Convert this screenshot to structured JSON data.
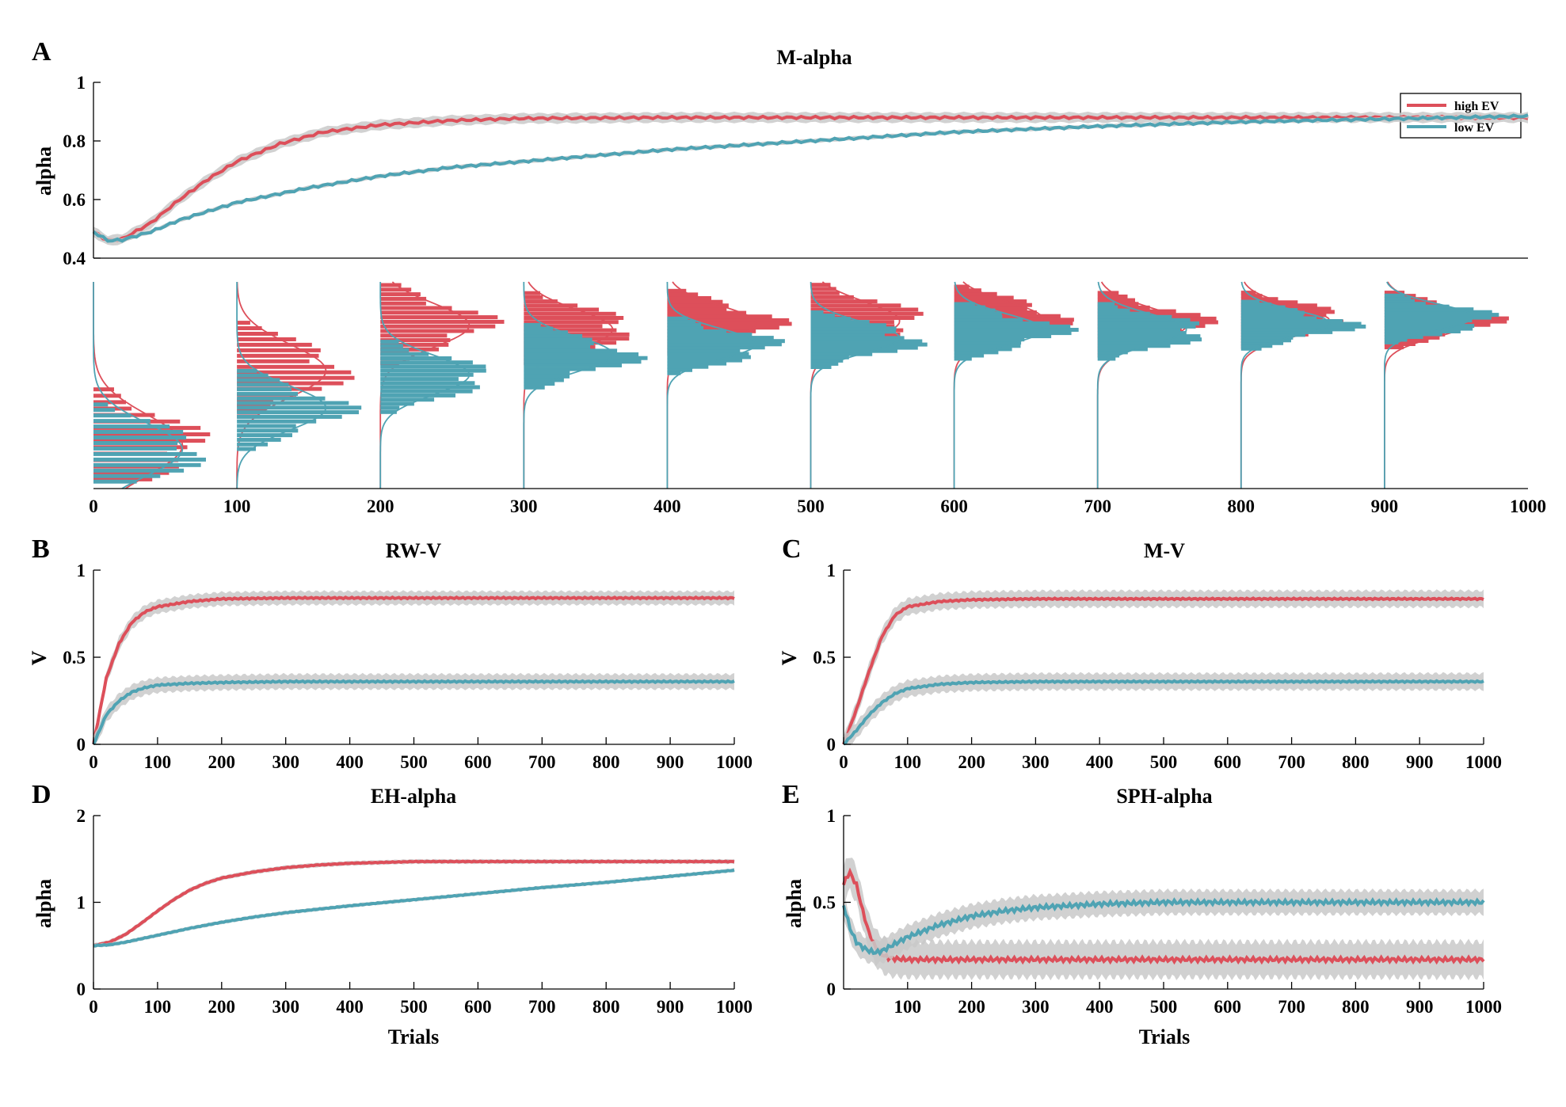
{
  "colors": {
    "high": "#dd4f5a",
    "low": "#4fa3b3",
    "band": "#c9c9c9",
    "axis": "#000000"
  },
  "chart_data": [
    {
      "panel": "A",
      "type": "line",
      "title": "M-alpha",
      "xlabel": "",
      "ylabel": "alpha",
      "xlim": [
        0,
        1000
      ],
      "ylim": [
        0.4,
        1
      ],
      "xticks": [],
      "yticks": [
        0.4,
        0.6,
        0.8,
        1
      ],
      "legend": {
        "position": "top-right",
        "entries": [
          "high EV",
          "low EV"
        ]
      },
      "series": [
        {
          "name": "high EV",
          "x": [
            0,
            10,
            20,
            40,
            60,
            80,
            100,
            130,
            160,
            200,
            250,
            300,
            400,
            500,
            600,
            700,
            800,
            900,
            1000
          ],
          "y": [
            0.49,
            0.46,
            0.465,
            0.52,
            0.6,
            0.67,
            0.73,
            0.79,
            0.83,
            0.855,
            0.87,
            0.877,
            0.88,
            0.88,
            0.88,
            0.88,
            0.88,
            0.88,
            0.88
          ],
          "band": 0.02
        },
        {
          "name": "low EV",
          "x": [
            0,
            10,
            20,
            40,
            60,
            80,
            100,
            150,
            200,
            250,
            300,
            400,
            500,
            600,
            700,
            800,
            900,
            1000
          ],
          "y": [
            0.49,
            0.46,
            0.462,
            0.49,
            0.53,
            0.56,
            0.59,
            0.64,
            0.68,
            0.71,
            0.73,
            0.77,
            0.8,
            0.83,
            0.85,
            0.865,
            0.875,
            0.885
          ],
          "band": 0.008
        }
      ]
    },
    {
      "panel": "A-hist",
      "type": "histogram",
      "xticks": [
        0,
        100,
        200,
        300,
        400,
        500,
        600,
        700,
        800,
        900,
        1000
      ],
      "time_points": [
        0,
        100,
        200,
        300,
        400,
        500,
        600,
        700,
        800,
        900
      ],
      "high_ev_mode": [
        0.21,
        0.57,
        0.79,
        0.77,
        0.8,
        0.81,
        0.82,
        0.79,
        0.81,
        0.81
      ],
      "high_ev_sd": [
        0.14,
        0.12,
        0.1,
        0.09,
        0.08,
        0.09,
        0.08,
        0.08,
        0.07,
        0.07
      ],
      "low_ev_mode": [
        0.19,
        0.39,
        0.55,
        0.65,
        0.7,
        0.73,
        0.77,
        0.77,
        0.8,
        0.83
      ],
      "low_ev_sd": [
        0.12,
        0.1,
        0.09,
        0.08,
        0.07,
        0.07,
        0.07,
        0.07,
        0.06,
        0.06
      ]
    },
    {
      "panel": "B",
      "type": "line",
      "title": "RW-V",
      "xlabel": "",
      "ylabel": "V",
      "xlim": [
        0,
        1000
      ],
      "ylim": [
        0,
        1
      ],
      "xticks": [
        0,
        100,
        200,
        300,
        400,
        500,
        600,
        700,
        800,
        900,
        1000
      ],
      "yticks": [
        0,
        0.5,
        1
      ],
      "series": [
        {
          "name": "high EV",
          "x": [
            0,
            20,
            40,
            60,
            80,
            100,
            150,
            200,
            300,
            400,
            500,
            600,
            700,
            800,
            900,
            1000
          ],
          "y": [
            0,
            0.38,
            0.58,
            0.7,
            0.76,
            0.79,
            0.82,
            0.835,
            0.84,
            0.84,
            0.84,
            0.84,
            0.84,
            0.84,
            0.84,
            0.84
          ],
          "band": 0.045
        },
        {
          "name": "low EV",
          "x": [
            0,
            20,
            40,
            60,
            80,
            100,
            150,
            200,
            300,
            400,
            500,
            600,
            700,
            800,
            900,
            1000
          ],
          "y": [
            0,
            0.17,
            0.25,
            0.3,
            0.325,
            0.34,
            0.35,
            0.355,
            0.36,
            0.36,
            0.36,
            0.36,
            0.36,
            0.36,
            0.36,
            0.36
          ],
          "band": 0.05
        }
      ]
    },
    {
      "panel": "C",
      "type": "line",
      "title": "M-V",
      "xlabel": "",
      "ylabel": "V",
      "xlim": [
        0,
        1000
      ],
      "ylim": [
        0,
        1
      ],
      "xticks": [
        0,
        100,
        200,
        300,
        400,
        500,
        600,
        700,
        800,
        900,
        1000
      ],
      "yticks": [
        0,
        0.5,
        1
      ],
      "series": [
        {
          "name": "high EV",
          "x": [
            0,
            20,
            40,
            60,
            80,
            100,
            150,
            200,
            300,
            400,
            500,
            600,
            700,
            800,
            900,
            1000
          ],
          "y": [
            0,
            0.2,
            0.42,
            0.62,
            0.74,
            0.79,
            0.82,
            0.83,
            0.835,
            0.835,
            0.835,
            0.835,
            0.835,
            0.835,
            0.835,
            0.835
          ],
          "band": 0.055
        },
        {
          "name": "low EV",
          "x": [
            0,
            20,
            40,
            60,
            80,
            100,
            150,
            200,
            300,
            400,
            500,
            600,
            700,
            800,
            900,
            1000
          ],
          "y": [
            0,
            0.08,
            0.17,
            0.24,
            0.29,
            0.32,
            0.345,
            0.355,
            0.36,
            0.36,
            0.36,
            0.36,
            0.36,
            0.36,
            0.36,
            0.36
          ],
          "band": 0.055
        }
      ]
    },
    {
      "panel": "D",
      "type": "line",
      "title": "EH-alpha",
      "xlabel": "Trials",
      "ylabel": "alpha",
      "xlim": [
        0,
        1000
      ],
      "ylim": [
        0,
        2
      ],
      "xticks": [
        0,
        100,
        200,
        300,
        400,
        500,
        600,
        700,
        800,
        900,
        1000
      ],
      "yticks": [
        0,
        1,
        2
      ],
      "series": [
        {
          "name": "high EV",
          "x": [
            0,
            25,
            50,
            75,
            100,
            125,
            150,
            175,
            200,
            250,
            300,
            350,
            400,
            500,
            600,
            700,
            800,
            900,
            1000
          ],
          "y": [
            0.5,
            0.54,
            0.63,
            0.76,
            0.9,
            1.03,
            1.14,
            1.22,
            1.28,
            1.35,
            1.4,
            1.43,
            1.45,
            1.47,
            1.47,
            1.47,
            1.47,
            1.47,
            1.47
          ],
          "band": 0.03
        },
        {
          "name": "low EV",
          "x": [
            0,
            25,
            50,
            100,
            150,
            200,
            250,
            300,
            400,
            500,
            600,
            700,
            800,
            900,
            1000
          ],
          "y": [
            0.5,
            0.51,
            0.54,
            0.62,
            0.7,
            0.77,
            0.83,
            0.88,
            0.96,
            1.03,
            1.1,
            1.17,
            1.23,
            1.3,
            1.37
          ],
          "band": 0.025
        }
      ]
    },
    {
      "panel": "E",
      "type": "line",
      "title": "SPH-alpha",
      "xlabel": "Trials",
      "ylabel": "alpha",
      "xlim": [
        0,
        1000
      ],
      "ylim": [
        0,
        1
      ],
      "xticks": [
        100,
        200,
        300,
        400,
        500,
        600,
        700,
        800,
        900,
        1000
      ],
      "yticks": [
        0,
        0.5,
        1
      ],
      "series": [
        {
          "name": "high EV",
          "x": [
            0,
            5,
            10,
            20,
            30,
            40,
            50,
            60,
            70,
            80,
            100,
            150,
            200,
            300,
            400,
            500,
            600,
            700,
            800,
            900,
            1000
          ],
          "y": [
            0.6,
            0.65,
            0.67,
            0.6,
            0.45,
            0.32,
            0.24,
            0.2,
            0.18,
            0.175,
            0.17,
            0.17,
            0.17,
            0.17,
            0.17,
            0.17,
            0.17,
            0.17,
            0.17,
            0.17,
            0.17
          ],
          "band": 0.12
        },
        {
          "name": "low EV",
          "x": [
            0,
            5,
            10,
            20,
            30,
            40,
            50,
            60,
            80,
            100,
            150,
            200,
            250,
            300,
            400,
            500,
            600,
            700,
            800,
            900,
            1000
          ],
          "y": [
            0.48,
            0.42,
            0.35,
            0.27,
            0.24,
            0.22,
            0.21,
            0.22,
            0.26,
            0.3,
            0.37,
            0.42,
            0.45,
            0.47,
            0.49,
            0.5,
            0.5,
            0.5,
            0.5,
            0.5,
            0.5
          ],
          "band": 0.08
        }
      ]
    }
  ]
}
